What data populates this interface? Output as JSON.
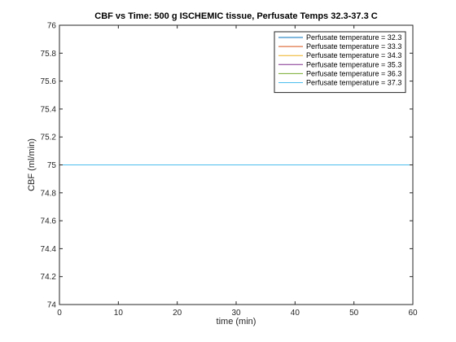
{
  "chart_data": {
    "type": "line",
    "title": "CBF vs Time: 500 g ISCHEMIC tissue, Perfusate Temps 32.3-37.3 C",
    "xlabel": "time (min)",
    "ylabel": "CBF (ml/min)",
    "xlim": [
      0,
      60
    ],
    "ylim": [
      74,
      76
    ],
    "xticks": [
      0,
      10,
      20,
      30,
      40,
      50,
      60
    ],
    "yticks": [
      74,
      74.2,
      74.4,
      74.6,
      74.8,
      75,
      75.2,
      75.4,
      75.6,
      75.8,
      76
    ],
    "grid": false,
    "legend_position": "top-right",
    "series": [
      {
        "name": "Perfusate temperature = 32.3",
        "color": "#0072bd",
        "x": [
          0,
          60
        ],
        "y": [
          75,
          75
        ]
      },
      {
        "name": "Perfusate temperature = 33.3",
        "color": "#d95319",
        "x": [
          0,
          60
        ],
        "y": [
          75,
          75
        ]
      },
      {
        "name": "Perfusate temperature = 34.3",
        "color": "#edb120",
        "x": [
          0,
          60
        ],
        "y": [
          75,
          75
        ]
      },
      {
        "name": "Perfusate temperature = 35.3",
        "color": "#7e2f8e",
        "x": [
          0,
          60
        ],
        "y": [
          75,
          75
        ]
      },
      {
        "name": "Perfusate temperature = 36.3",
        "color": "#77ac30",
        "x": [
          0,
          60
        ],
        "y": [
          75,
          75
        ]
      },
      {
        "name": "Perfusate temperature = 37.3",
        "color": "#4dbeee",
        "x": [
          0,
          60
        ],
        "y": [
          75,
          75
        ]
      }
    ]
  }
}
